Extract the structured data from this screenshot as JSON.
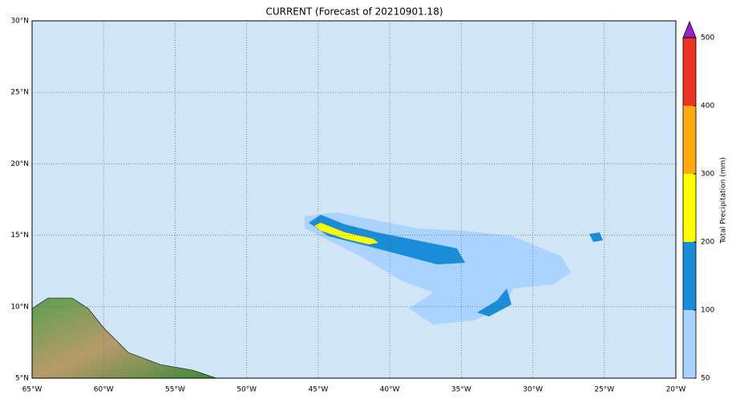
{
  "title": "CURRENT (Forecast of 20210901.18)",
  "map": {
    "lon_ticks": [
      "65°W",
      "60°W",
      "55°W",
      "50°W",
      "45°W",
      "40°W",
      "35°W",
      "30°W",
      "25°W",
      "20°W"
    ],
    "lat_ticks": [
      "30°N",
      "25°N",
      "20°N",
      "15°N",
      "10°N",
      "5°N"
    ]
  },
  "colorbar": {
    "label": "Total Precipitation (mm)",
    "levels": [
      50,
      100,
      200,
      300,
      400,
      500
    ],
    "colors": [
      "#aad4ff",
      "#1a8cd8",
      "#ffff00",
      "#ffaa11",
      "#ee3322"
    ],
    "extend_color": "#9922cc"
  }
}
